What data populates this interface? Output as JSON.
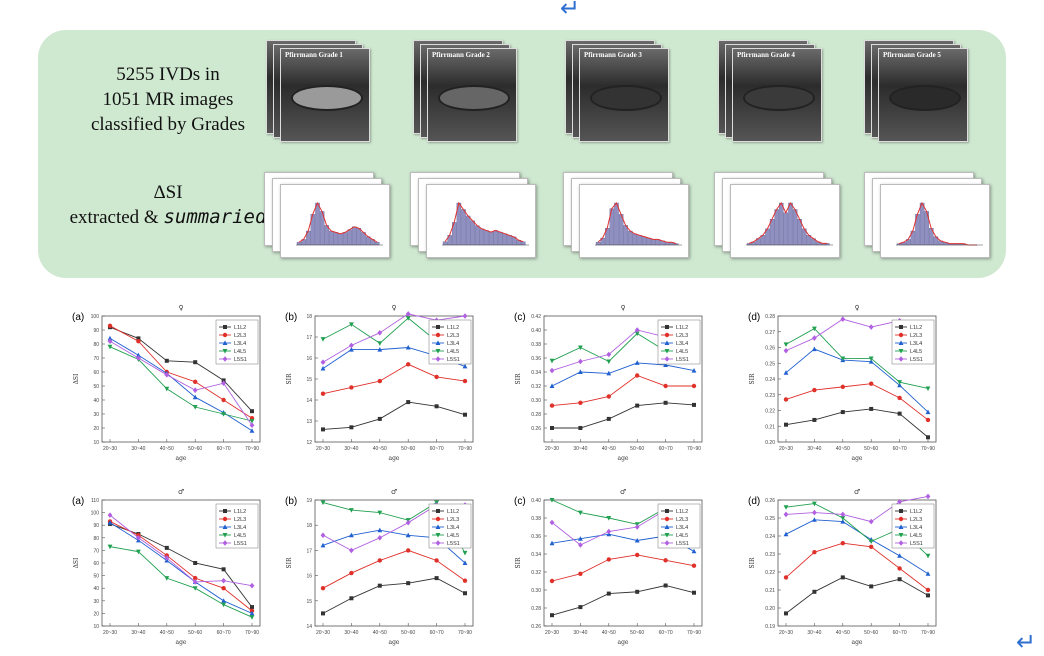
{
  "panel": {
    "left_text": "5255 IVDs in\n1051 MR images\nclassified by Grades",
    "dsi_line1": "ΔSI",
    "dsi_line2": "extracted & ",
    "dsi_line2_italic": "summaried",
    "grades": [
      "Pfirrmann Grade 1",
      "Pfirrmann Grade 2",
      "Pfirrmann Grade 3",
      "Pfirrmann Grade 4",
      "Pfirrmann Grade 5"
    ]
  },
  "colors": {
    "L1L2": "#333333",
    "L2L3": "#e0302a",
    "L3L4": "#2060d0",
    "L4L5": "#20a050",
    "L5S1": "#b060e0",
    "panel": "#cfe8d0"
  },
  "chart_data": [
    {
      "type": "line",
      "panel_label": "(a)",
      "title": "♀",
      "xlabel": "age",
      "ylabel": "ΔSI",
      "categories": [
        "20~30",
        "30~40",
        "40~50",
        "50~60",
        "60~70",
        "70~90"
      ],
      "ylim": [
        10,
        100
      ],
      "yticks": [
        10,
        20,
        30,
        40,
        50,
        60,
        70,
        80,
        90,
        100
      ],
      "series": [
        {
          "name": "L1L2",
          "values": [
            92,
            84,
            68,
            67,
            54,
            32
          ]
        },
        {
          "name": "L2L3",
          "values": [
            93,
            82,
            60,
            53,
            40,
            27
          ]
        },
        {
          "name": "L3L4",
          "values": [
            84,
            72,
            59,
            42,
            31,
            18
          ]
        },
        {
          "name": "L4L5",
          "values": [
            78,
            69,
            48,
            35,
            30,
            25
          ]
        },
        {
          "name": "L5S1",
          "values": [
            82,
            70,
            58,
            47,
            52,
            22
          ]
        }
      ]
    },
    {
      "type": "line",
      "panel_label": "(b)",
      "title": "♀",
      "xlabel": "age",
      "ylabel": "SIR",
      "categories": [
        "20~30",
        "30~40",
        "40~50",
        "50~60",
        "60~70",
        "70~90"
      ],
      "ylim": [
        12,
        18
      ],
      "yticks": [
        12,
        13,
        14,
        15,
        16,
        17,
        18
      ],
      "series": [
        {
          "name": "L1L2",
          "values": [
            12.6,
            12.7,
            13.1,
            13.9,
            13.7,
            13.3
          ]
        },
        {
          "name": "L2L3",
          "values": [
            14.3,
            14.6,
            14.9,
            15.7,
            15.1,
            14.9
          ]
        },
        {
          "name": "L3L4",
          "values": [
            15.5,
            16.4,
            16.4,
            16.5,
            16.1,
            15.6
          ]
        },
        {
          "name": "L4L5",
          "values": [
            16.9,
            17.6,
            16.7,
            17.9,
            16.8,
            16.5
          ]
        },
        {
          "name": "L5S1",
          "values": [
            15.8,
            16.6,
            17.2,
            18.1,
            17.8,
            18.0
          ]
        }
      ]
    },
    {
      "type": "line",
      "panel_label": "(c)",
      "title": "♀",
      "xlabel": "age",
      "ylabel": "SIR",
      "categories": [
        "20~30",
        "30~40",
        "40~50",
        "50~60",
        "60~70",
        "70~90"
      ],
      "ylim": [
        0.24,
        0.42
      ],
      "yticks": [
        0.26,
        0.28,
        0.3,
        0.32,
        0.34,
        0.36,
        0.38,
        0.4,
        0.42
      ],
      "series": [
        {
          "name": "L1L2",
          "values": [
            0.26,
            0.26,
            0.273,
            0.292,
            0.296,
            0.293
          ]
        },
        {
          "name": "L2L3",
          "values": [
            0.292,
            0.296,
            0.305,
            0.335,
            0.32,
            0.32
          ]
        },
        {
          "name": "L3L4",
          "values": [
            0.32,
            0.34,
            0.338,
            0.353,
            0.35,
            0.342
          ]
        },
        {
          "name": "L4L5",
          "values": [
            0.356,
            0.375,
            0.355,
            0.395,
            0.37,
            0.363
          ]
        },
        {
          "name": "L5S1",
          "values": [
            0.342,
            0.355,
            0.365,
            0.4,
            0.39,
            0.41
          ]
        }
      ]
    },
    {
      "type": "line",
      "panel_label": "(d)",
      "title": "♀",
      "xlabel": "age",
      "ylabel": "SIR",
      "categories": [
        "20~30",
        "30~40",
        "40~50",
        "50~60",
        "60~70",
        "70~90"
      ],
      "ylim": [
        0.2,
        0.28
      ],
      "yticks": [
        0.2,
        0.21,
        0.22,
        0.23,
        0.24,
        0.25,
        0.26,
        0.27,
        0.28
      ],
      "series": [
        {
          "name": "L1L2",
          "values": [
            0.211,
            0.214,
            0.219,
            0.221,
            0.218,
            0.203
          ]
        },
        {
          "name": "L2L3",
          "values": [
            0.227,
            0.233,
            0.235,
            0.237,
            0.228,
            0.214
          ]
        },
        {
          "name": "L3L4",
          "values": [
            0.244,
            0.259,
            0.252,
            0.251,
            0.236,
            0.219
          ]
        },
        {
          "name": "L4L5",
          "values": [
            0.262,
            0.272,
            0.253,
            0.253,
            0.238,
            0.234
          ]
        },
        {
          "name": "L5S1",
          "values": [
            0.258,
            0.266,
            0.278,
            0.273,
            0.277,
            0.273
          ]
        }
      ]
    },
    {
      "type": "line",
      "panel_label": "(a)",
      "title": "♂",
      "xlabel": "age",
      "ylabel": "ΔSI",
      "categories": [
        "20~30",
        "30~40",
        "40~50",
        "50~60",
        "60~70",
        "70~90"
      ],
      "ylim": [
        10,
        110
      ],
      "yticks": [
        10,
        20,
        30,
        40,
        50,
        60,
        70,
        80,
        90,
        100,
        110
      ],
      "series": [
        {
          "name": "L1L2",
          "values": [
            91,
            83,
            72,
            60,
            55,
            25
          ]
        },
        {
          "name": "L2L3",
          "values": [
            93,
            82,
            66,
            48,
            40,
            22
          ]
        },
        {
          "name": "L3L4",
          "values": [
            92,
            78,
            62,
            45,
            30,
            20
          ]
        },
        {
          "name": "L4L5",
          "values": [
            73,
            69,
            48,
            40,
            27,
            17
          ]
        },
        {
          "name": "L5S1",
          "values": [
            98,
            80,
            64,
            45,
            46,
            42
          ]
        }
      ]
    },
    {
      "type": "line",
      "panel_label": "(b)",
      "title": "♂",
      "xlabel": "age",
      "ylabel": "SIR",
      "categories": [
        "20~30",
        "30~40",
        "40~50",
        "50~60",
        "60~70",
        "70~90"
      ],
      "ylim": [
        14,
        19
      ],
      "yticks": [
        14,
        15,
        16,
        17,
        18,
        19
      ],
      "series": [
        {
          "name": "L1L2",
          "values": [
            14.5,
            15.1,
            15.6,
            15.7,
            15.9,
            15.3
          ]
        },
        {
          "name": "L2L3",
          "values": [
            15.5,
            16.1,
            16.6,
            17.0,
            16.6,
            15.8
          ]
        },
        {
          "name": "L3L4",
          "values": [
            17.2,
            17.6,
            17.8,
            17.6,
            17.5,
            16.5
          ]
        },
        {
          "name": "L4L5",
          "values": [
            18.9,
            18.6,
            18.5,
            18.2,
            18.9,
            16.9
          ]
        },
        {
          "name": "L5S1",
          "values": [
            17.6,
            17.0,
            17.5,
            18.1,
            18.8,
            18.8
          ]
        }
      ]
    },
    {
      "type": "line",
      "panel_label": "(c)",
      "title": "♂",
      "xlabel": "age",
      "ylabel": "SIR",
      "categories": [
        "20~30",
        "30~40",
        "40~50",
        "50~60",
        "60~70",
        "70~90"
      ],
      "ylim": [
        0.26,
        0.4
      ],
      "yticks": [
        0.26,
        0.28,
        0.3,
        0.32,
        0.34,
        0.36,
        0.38,
        0.4
      ],
      "series": [
        {
          "name": "L1L2",
          "values": [
            0.272,
            0.281,
            0.296,
            0.298,
            0.305,
            0.297
          ]
        },
        {
          "name": "L2L3",
          "values": [
            0.31,
            0.318,
            0.334,
            0.339,
            0.333,
            0.327
          ]
        },
        {
          "name": "L3L4",
          "values": [
            0.352,
            0.357,
            0.362,
            0.355,
            0.36,
            0.343
          ]
        },
        {
          "name": "L4L5",
          "values": [
            0.4,
            0.386,
            0.38,
            0.373,
            0.391,
            0.36
          ]
        },
        {
          "name": "L5S1",
          "values": [
            0.375,
            0.35,
            0.365,
            0.37,
            0.389,
            0.391
          ]
        }
      ]
    },
    {
      "type": "line",
      "panel_label": "(d)",
      "title": "♂",
      "xlabel": "age",
      "ylabel": "SIR",
      "categories": [
        "20~30",
        "30~40",
        "40~50",
        "50~60",
        "60~70",
        "70~90"
      ],
      "ylim": [
        0.19,
        0.26
      ],
      "yticks": [
        0.19,
        0.2,
        0.21,
        0.22,
        0.23,
        0.24,
        0.25,
        0.26
      ],
      "series": [
        {
          "name": "L1L2",
          "values": [
            0.197,
            0.209,
            0.217,
            0.212,
            0.216,
            0.207
          ]
        },
        {
          "name": "L2L3",
          "values": [
            0.217,
            0.231,
            0.236,
            0.234,
            0.222,
            0.21
          ]
        },
        {
          "name": "L3L4",
          "values": [
            0.241,
            0.249,
            0.248,
            0.238,
            0.229,
            0.219
          ]
        },
        {
          "name": "L4L5",
          "values": [
            0.256,
            0.258,
            0.25,
            0.237,
            0.244,
            0.229
          ]
        },
        {
          "name": "L5S1",
          "values": [
            0.252,
            0.253,
            0.252,
            0.248,
            0.259,
            0.262
          ]
        }
      ]
    }
  ]
}
